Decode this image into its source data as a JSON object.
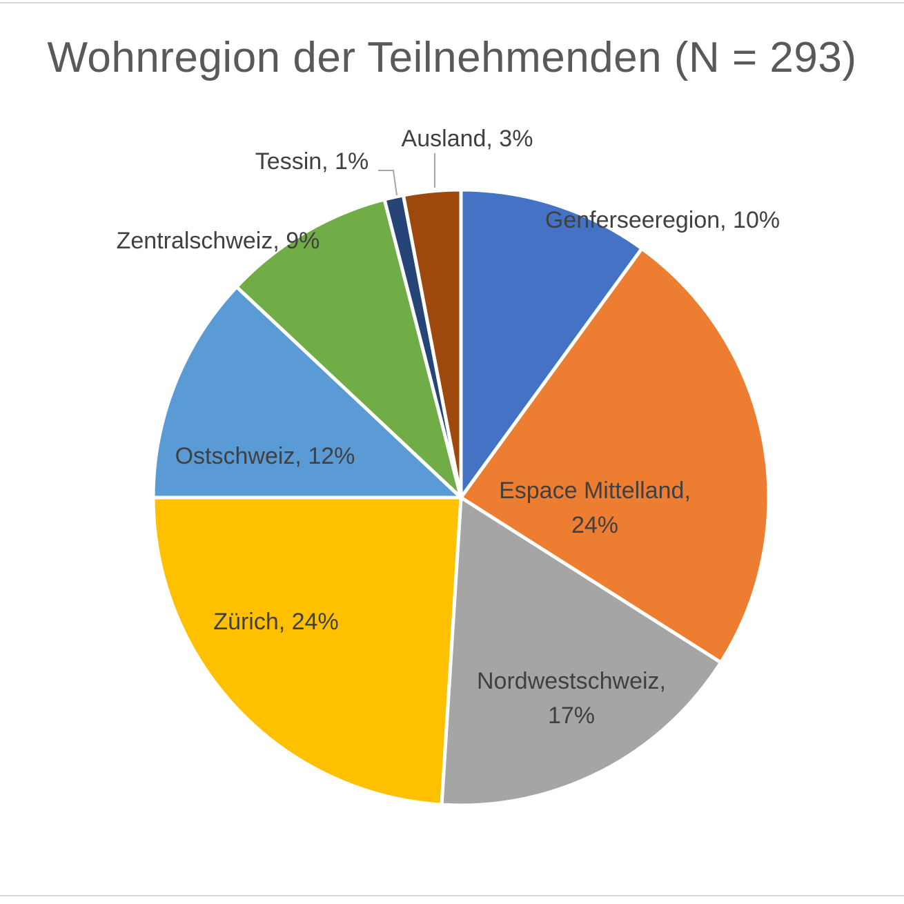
{
  "chart_data": {
    "type": "pie",
    "title": "Wohnregion der Teilnehmenden (N = 293)",
    "slices": [
      {
        "label": "Genferseeregion",
        "value": 10,
        "color": "#4472c4",
        "label_text": [
          "Genferseeregion, 10%"
        ]
      },
      {
        "label": "Espace Mittelland",
        "value": 24,
        "color": "#ed7d31",
        "label_text": [
          "Espace Mittelland,",
          "24%"
        ]
      },
      {
        "label": "Nordwestschweiz",
        "value": 17,
        "color": "#a5a5a5",
        "label_text": [
          "Nordwestschweiz,",
          "17%"
        ]
      },
      {
        "label": "Zürich",
        "value": 24,
        "color": "#ffc000",
        "label_text": [
          "Zürich, 24%"
        ]
      },
      {
        "label": "Ostschweiz",
        "value": 12,
        "color": "#5b9bd5",
        "label_text": [
          "Ostschweiz, 12%"
        ]
      },
      {
        "label": "Zentralschweiz",
        "value": 9,
        "color": "#70ad47",
        "label_text": [
          "Zentralschweiz, 9%"
        ]
      },
      {
        "label": "Tessin",
        "value": 1,
        "color": "#264478",
        "label_text": [
          "Tessin, 1%"
        ]
      },
      {
        "label": "Ausland",
        "value": 3,
        "color": "#9e480e",
        "label_text": [
          "Ausland, 3%"
        ]
      }
    ],
    "start_angle": "12 o'clock",
    "direction": "clockwise",
    "legend": "none"
  }
}
